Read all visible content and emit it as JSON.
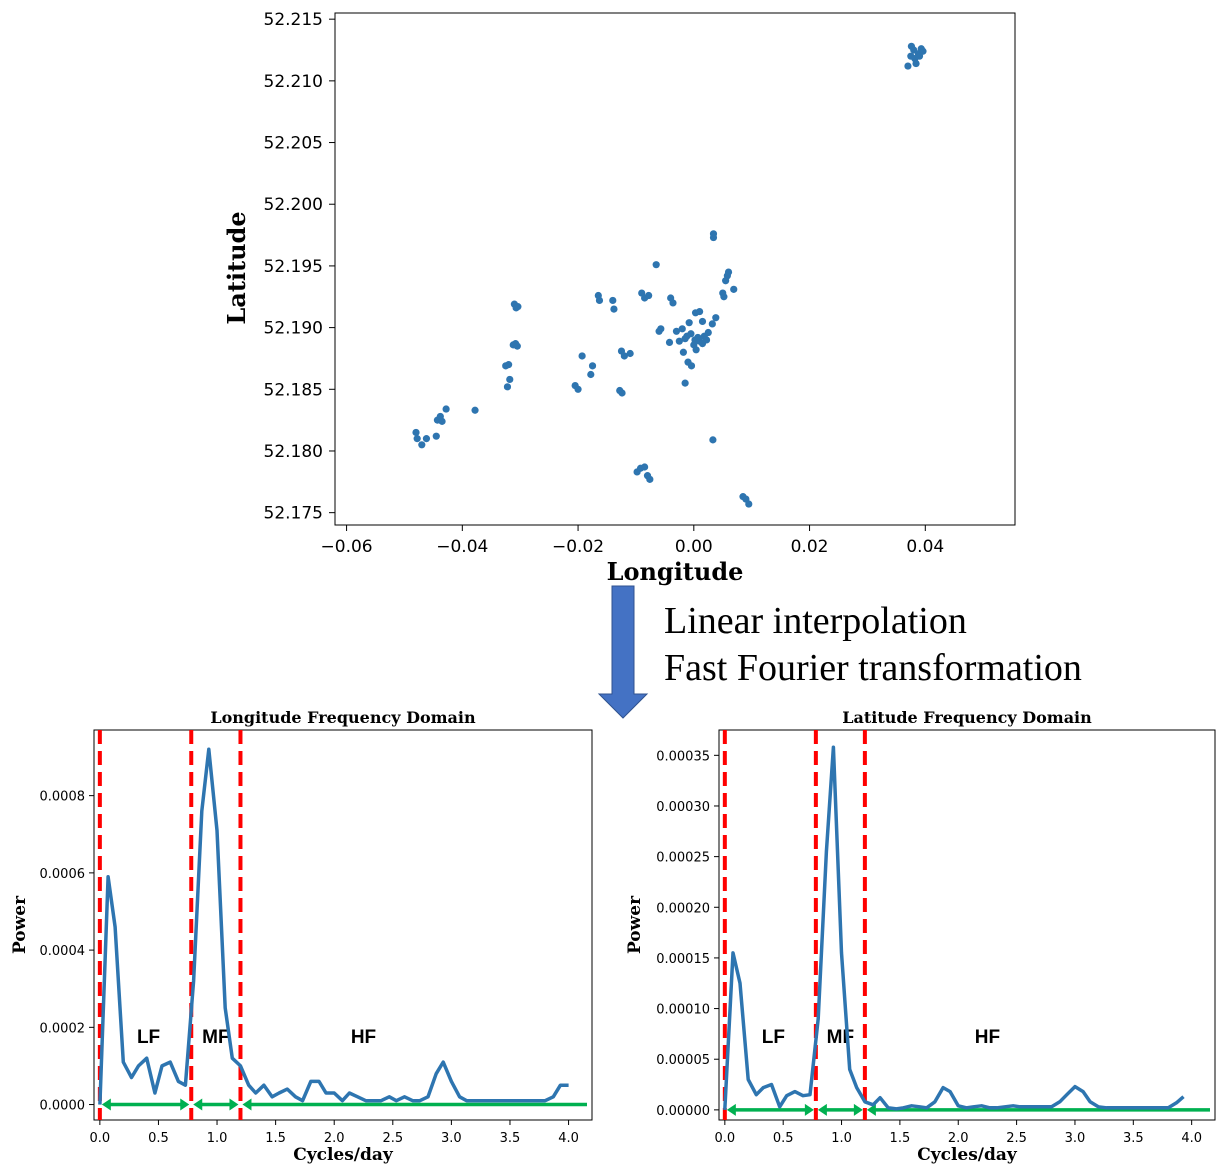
{
  "process_steps": [
    "Linear interpolation",
    "Fast Fourier transformation"
  ],
  "colors": {
    "series": "#2e75b0",
    "band_boundary": "#ff0000",
    "band_arrow": "#00b050",
    "arrow_fill": "#4472c4"
  },
  "chart_data": [
    {
      "type": "scatter",
      "title": "",
      "xlabel": "Longitude",
      "ylabel": "Latitude",
      "xlim": [
        -0.062,
        0.0555
      ],
      "ylim": [
        52.174,
        52.2155
      ],
      "xticks": [
        "−0.06",
        "−0.04",
        "−0.02",
        "0.00",
        "0.02",
        "0.04"
      ],
      "yticks": [
        "52.175",
        "52.180",
        "52.185",
        "52.190",
        "52.195",
        "52.200",
        "52.205",
        "52.210",
        "52.215"
      ],
      "points": [
        [
          0.037,
          52.2112
        ],
        [
          0.0375,
          52.212
        ],
        [
          0.038,
          52.2125
        ],
        [
          0.0382,
          52.2118
        ],
        [
          0.0388,
          52.2122
        ],
        [
          0.0393,
          52.2126
        ],
        [
          0.0396,
          52.2124
        ],
        [
          0.0376,
          52.2128
        ],
        [
          0.0384,
          52.2114
        ],
        [
          0.039,
          52.212
        ],
        [
          0.0034,
          52.1973
        ],
        [
          0.0034,
          52.1976
        ],
        [
          -0.0065,
          52.1951
        ],
        [
          0.006,
          52.1945
        ],
        [
          0.0058,
          52.1942
        ],
        [
          0.0055,
          52.1938
        ],
        [
          0.0069,
          52.1931
        ],
        [
          0.005,
          52.1928
        ],
        [
          0.0052,
          52.1925
        ],
        [
          -0.031,
          52.1919
        ],
        [
          -0.0307,
          52.1916
        ],
        [
          -0.0304,
          52.1917
        ],
        [
          -0.0165,
          52.1926
        ],
        [
          -0.0163,
          52.1922
        ],
        [
          -0.014,
          52.1922
        ],
        [
          -0.0138,
          52.1915
        ],
        [
          -0.009,
          52.1928
        ],
        [
          -0.0085,
          52.1924
        ],
        [
          -0.0078,
          52.1926
        ],
        [
          -0.004,
          52.1924
        ],
        [
          -0.0036,
          52.192
        ],
        [
          -0.0312,
          52.1886
        ],
        [
          -0.0308,
          52.1887
        ],
        [
          -0.0305,
          52.1885
        ],
        [
          -0.0125,
          52.1881
        ],
        [
          -0.012,
          52.1877
        ],
        [
          -0.011,
          52.1879
        ],
        [
          -0.006,
          52.1897
        ],
        [
          -0.0057,
          52.1899
        ],
        [
          -0.003,
          52.1897
        ],
        [
          -0.002,
          52.1899
        ],
        [
          -0.0012,
          52.1893
        ],
        [
          -0.0005,
          52.1895
        ],
        [
          0.0002,
          52.189
        ],
        [
          0.001,
          52.1889
        ],
        [
          0.0018,
          52.1893
        ],
        [
          0.0025,
          52.1896
        ],
        [
          0.0032,
          52.1903
        ],
        [
          0.0038,
          52.1908
        ],
        [
          -0.0025,
          52.1889
        ],
        [
          -0.0015,
          52.1891
        ],
        [
          0.0,
          52.1886
        ],
        [
          0.0007,
          52.1892
        ],
        [
          0.0015,
          52.1887
        ],
        [
          0.0022,
          52.189
        ],
        [
          0.0003,
          52.1912
        ],
        [
          0.001,
          52.1913
        ],
        [
          0.0015,
          52.1905
        ],
        [
          -0.0008,
          52.1904
        ],
        [
          -0.0018,
          52.188
        ],
        [
          -0.001,
          52.1872
        ],
        [
          -0.0004,
          52.1869
        ],
        [
          0.0004,
          52.1882
        ],
        [
          -0.0042,
          52.1888
        ],
        [
          -0.0015,
          52.1855
        ],
        [
          -0.032,
          52.187
        ],
        [
          -0.0325,
          52.1869
        ],
        [
          -0.0318,
          52.1858
        ],
        [
          -0.0322,
          52.1852
        ],
        [
          -0.0193,
          52.1877
        ],
        [
          -0.0175,
          52.1869
        ],
        [
          -0.0178,
          52.1862
        ],
        [
          -0.0205,
          52.1853
        ],
        [
          -0.02,
          52.185
        ],
        [
          -0.0128,
          52.1849
        ],
        [
          -0.0124,
          52.1847
        ],
        [
          -0.048,
          52.1815
        ],
        [
          -0.0478,
          52.181
        ],
        [
          -0.047,
          52.1805
        ],
        [
          -0.0462,
          52.181
        ],
        [
          -0.0445,
          52.1812
        ],
        [
          -0.0443,
          52.1825
        ],
        [
          -0.0438,
          52.1828
        ],
        [
          -0.0435,
          52.1824
        ],
        [
          -0.0428,
          52.1834
        ],
        [
          -0.0378,
          52.1833
        ],
        [
          0.0033,
          52.1809
        ],
        [
          -0.0098,
          52.1783
        ],
        [
          -0.0092,
          52.1786
        ],
        [
          -0.0085,
          52.1787
        ],
        [
          -0.008,
          52.178
        ],
        [
          -0.0076,
          52.1777
        ],
        [
          0.0085,
          52.1763
        ],
        [
          0.009,
          52.1761
        ],
        [
          0.0095,
          52.1757
        ]
      ]
    },
    {
      "type": "line",
      "title": "Longitude Frequency Domain",
      "xlabel": "Cycles/day",
      "ylabel": "Power",
      "xlim": [
        -0.05,
        4.2
      ],
      "ylim": [
        -4e-05,
        0.00097
      ],
      "xticks": [
        "0.0",
        "0.5",
        "1.0",
        "1.5",
        "2.0",
        "2.5",
        "3.0",
        "3.5",
        "4.0"
      ],
      "yticks": [
        "0.0000",
        "0.0002",
        "0.0004",
        "0.0006",
        "0.0008"
      ],
      "band_boundaries": [
        0.0,
        0.78,
        1.2
      ],
      "bands": [
        "LF",
        "MF",
        "HF"
      ],
      "x": [
        0.0,
        0.07,
        0.13,
        0.2,
        0.27,
        0.33,
        0.4,
        0.47,
        0.53,
        0.6,
        0.67,
        0.73,
        0.8,
        0.87,
        0.93,
        1.0,
        1.07,
        1.13,
        1.2,
        1.27,
        1.33,
        1.4,
        1.47,
        1.53,
        1.6,
        1.67,
        1.73,
        1.8,
        1.87,
        1.93,
        2.0,
        2.07,
        2.13,
        2.2,
        2.27,
        2.33,
        2.4,
        2.47,
        2.53,
        2.6,
        2.67,
        2.73,
        2.8,
        2.87,
        2.93,
        3.0,
        3.07,
        3.13,
        3.2,
        3.27,
        3.33,
        3.4,
        3.47,
        3.53,
        3.6,
        3.67,
        3.73,
        3.8,
        3.87,
        3.93,
        4.0
      ],
      "y": [
        0.0,
        0.00059,
        0.00046,
        0.00011,
        7e-05,
        0.0001,
        0.00012,
        3e-05,
        0.0001,
        0.00011,
        6e-05,
        5e-05,
        0.00032,
        0.00076,
        0.00092,
        0.00071,
        0.00025,
        0.00012,
        0.0001,
        5e-05,
        3e-05,
        5e-05,
        2e-05,
        3e-05,
        4e-05,
        2e-05,
        1e-05,
        6e-05,
        6e-05,
        3e-05,
        3e-05,
        1e-05,
        3e-05,
        2e-05,
        1e-05,
        1e-05,
        1e-05,
        2e-05,
        1e-05,
        2e-05,
        1e-05,
        1e-05,
        2e-05,
        8e-05,
        0.00011,
        6e-05,
        2e-05,
        1e-05,
        1e-05,
        1e-05,
        1e-05,
        1e-05,
        1e-05,
        1e-05,
        1e-05,
        1e-05,
        1e-05,
        1e-05,
        2e-05,
        5e-05,
        5e-05
      ]
    },
    {
      "type": "line",
      "title": "Latitude Frequency Domain",
      "xlabel": "Cycles/day",
      "ylabel": "Power",
      "xlim": [
        -0.05,
        4.2
      ],
      "ylim": [
        -1e-05,
        0.000375
      ],
      "xticks": [
        "0.0",
        "0.5",
        "1.0",
        "1.5",
        "2.0",
        "2.5",
        "3.0",
        "3.5",
        "4.0"
      ],
      "yticks": [
        "0.00000",
        "0.00005",
        "0.00010",
        "0.00015",
        "0.00020",
        "0.00025",
        "0.00030",
        "0.00035"
      ],
      "band_boundaries": [
        0.0,
        0.78,
        1.2
      ],
      "bands": [
        "LF",
        "MF",
        "HF"
      ],
      "x": [
        0.0,
        0.07,
        0.13,
        0.2,
        0.27,
        0.33,
        0.4,
        0.47,
        0.53,
        0.6,
        0.67,
        0.73,
        0.8,
        0.87,
        0.93,
        1.0,
        1.07,
        1.13,
        1.2,
        1.27,
        1.33,
        1.4,
        1.47,
        1.53,
        1.6,
        1.67,
        1.73,
        1.8,
        1.87,
        1.93,
        2.0,
        2.07,
        2.13,
        2.2,
        2.27,
        2.33,
        2.4,
        2.47,
        2.53,
        2.6,
        2.67,
        2.73,
        2.8,
        2.87,
        2.93,
        3.0,
        3.07,
        3.13,
        3.2,
        3.27,
        3.33,
        3.4,
        3.47,
        3.53,
        3.6,
        3.67,
        3.73,
        3.8,
        3.87,
        3.93
      ],
      "y": [
        0.0,
        0.000155,
        0.000125,
        3e-05,
        1.5e-05,
        2.2e-05,
        2.5e-05,
        3e-06,
        1.4e-05,
        1.8e-05,
        1.4e-05,
        1.5e-05,
        9e-05,
        0.000255,
        0.000358,
        0.000155,
        4e-05,
        2.2e-05,
        8e-06,
        5e-06,
        1.2e-05,
        2e-06,
        1e-06,
        2e-06,
        4e-06,
        3e-06,
        2e-06,
        8e-06,
        2.2e-05,
        1.8e-05,
        4e-06,
        2e-06,
        3e-06,
        4e-06,
        2e-06,
        2e-06,
        3e-06,
        4e-06,
        3e-06,
        3e-06,
        3e-06,
        3e-06,
        3e-06,
        8e-06,
        1.5e-05,
        2.3e-05,
        1.8e-05,
        8e-06,
        3e-06,
        2e-06,
        2e-06,
        2e-06,
        2e-06,
        2e-06,
        2e-06,
        2e-06,
        2e-06,
        2e-06,
        7e-06,
        1.3e-05
      ]
    }
  ]
}
